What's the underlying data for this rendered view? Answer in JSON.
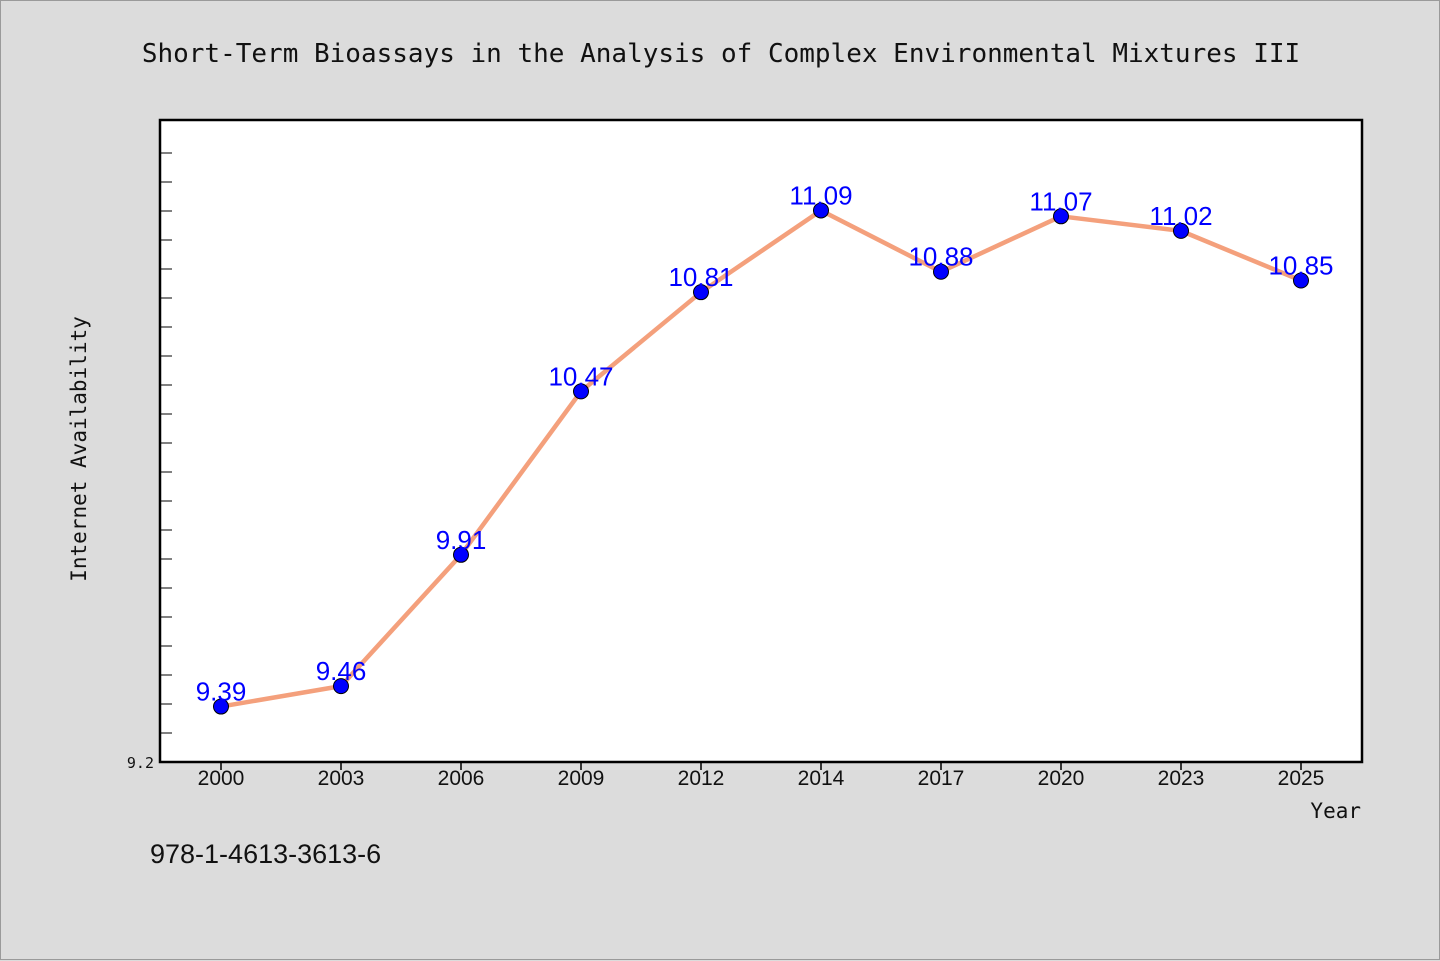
{
  "footer_text": "978-1-4613-3613-6",
  "colors": {
    "background": "#dcdcdc",
    "plot_background": "#ffffff",
    "line": "#f4a07c",
    "marker": "#0000ff",
    "data_label": "#0000ff"
  },
  "chart_data": {
    "type": "line",
    "title": "Short-Term Bioassays in the Analysis of Complex Environmental Mixtures III",
    "xlabel": "Year",
    "ylabel": "Internet Availability",
    "categories": [
      "2000",
      "2003",
      "2006",
      "2009",
      "2012",
      "2014",
      "2017",
      "2020",
      "2023",
      "2025"
    ],
    "series": [
      {
        "values": [
          9.39,
          9.46,
          9.91,
          10.47,
          10.81,
          11.09,
          10.88,
          11.07,
          11.02,
          10.85
        ]
      }
    ],
    "y_tick_labels": [
      "9.2"
    ],
    "ylim": [
      9.2,
      11.4
    ],
    "grid": false,
    "legend": "none",
    "data_labels": true
  }
}
